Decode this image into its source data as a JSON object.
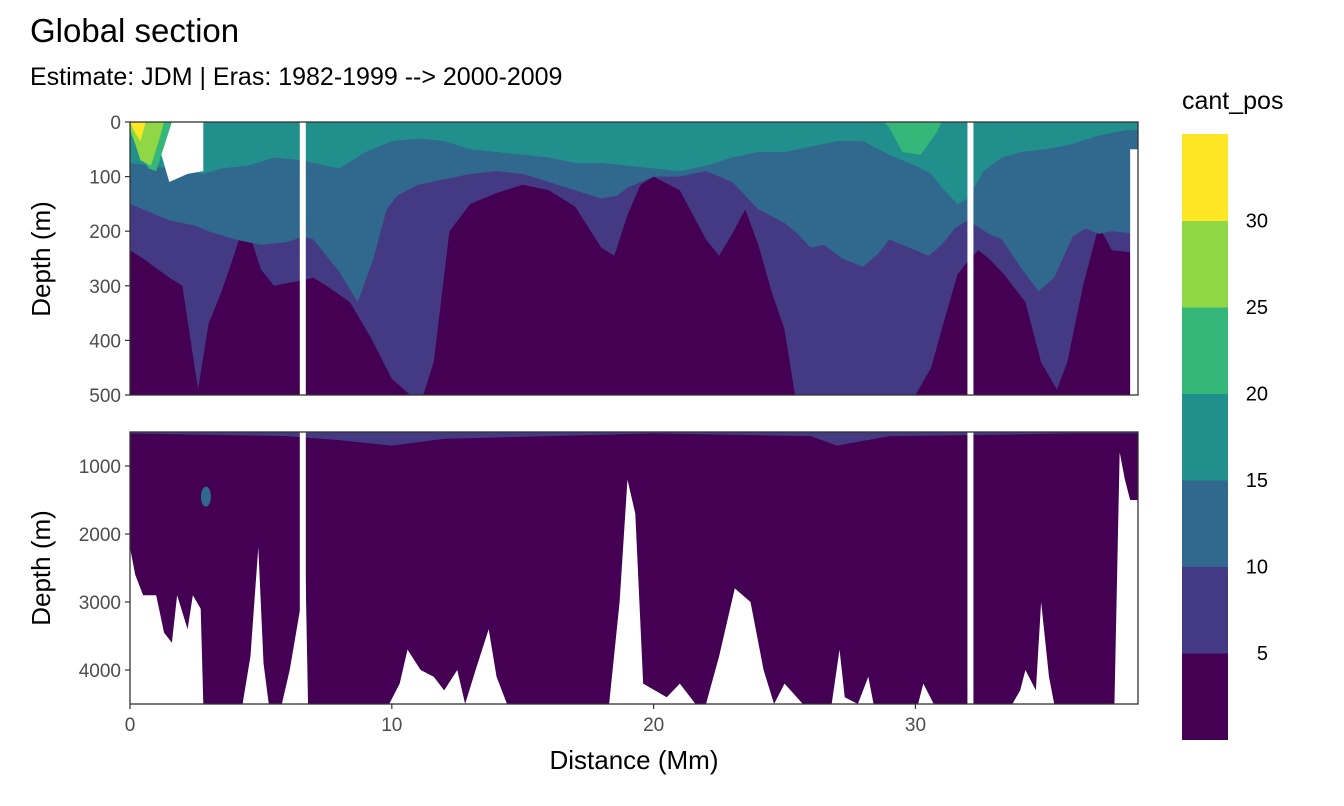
{
  "chart_data": {
    "type": "heatmap",
    "title": "Global section",
    "subtitle": "Estimate: JDM  | Eras: 1982-1999 --> 2000-2009",
    "xlabel": "Distance (Mm)",
    "ylabel": "Depth (m)",
    "xlim": [
      0,
      38.5
    ],
    "x_ticks": [
      "0",
      "10",
      "20",
      "30"
    ],
    "x_tick_values": [
      0,
      10,
      20,
      30
    ],
    "panels": [
      {
        "name": "upper",
        "ylim": [
          0,
          500
        ],
        "y_ticks": [
          "0",
          "100",
          "200",
          "300",
          "400",
          "500"
        ],
        "y_tick_values": [
          0,
          100,
          200,
          300,
          400,
          500
        ]
      },
      {
        "name": "lower",
        "ylim": [
          500,
          4500
        ],
        "y_ticks": [
          "1000",
          "2000",
          "3000",
          "4000"
        ],
        "y_tick_values": [
          1000,
          2000,
          3000,
          4000
        ]
      }
    ],
    "gaps_x": [
      6.6,
      32.1
    ],
    "legend": {
      "title": "cant_pos",
      "breaks": [
        "5",
        "10",
        "15",
        "20",
        "25",
        "30"
      ],
      "bins": [
        {
          "from": 0,
          "to": 5,
          "color": "#440154"
        },
        {
          "from": 5,
          "to": 10,
          "color": "#443A83"
        },
        {
          "from": 10,
          "to": 15,
          "color": "#31688E"
        },
        {
          "from": 15,
          "to": 20,
          "color": "#21908C"
        },
        {
          "from": 20,
          "to": 25,
          "color": "#35B779"
        },
        {
          "from": 25,
          "to": 30,
          "color": "#8FD744"
        },
        {
          "from": 30,
          "to": 35,
          "color": "#FDE725"
        }
      ]
    },
    "profiles": {
      "depth_5_bin": [
        [
          0,
          235
        ],
        [
          0.5,
          250
        ],
        [
          1.5,
          285
        ],
        [
          2,
          300
        ],
        [
          2.6,
          490
        ],
        [
          3,
          370
        ],
        [
          3.5,
          310
        ],
        [
          4,
          240
        ],
        [
          4.4,
          180
        ],
        [
          5,
          270
        ],
        [
          5.5,
          300
        ],
        [
          6,
          295
        ],
        [
          6.6,
          290
        ],
        [
          7,
          285
        ],
        [
          7.5,
          300
        ],
        [
          8.4,
          330
        ],
        [
          9.2,
          395
        ],
        [
          10,
          470
        ],
        [
          10.7,
          500
        ],
        [
          11.2,
          500
        ],
        [
          11.6,
          440
        ],
        [
          12.2,
          200
        ],
        [
          13,
          150
        ],
        [
          14,
          130
        ],
        [
          15,
          115
        ],
        [
          16,
          125
        ],
        [
          17,
          155
        ],
        [
          18,
          230
        ],
        [
          18.5,
          245
        ],
        [
          19,
          170
        ],
        [
          19.5,
          115
        ],
        [
          20,
          100
        ],
        [
          21,
          125
        ],
        [
          22,
          215
        ],
        [
          22.5,
          245
        ],
        [
          23,
          205
        ],
        [
          23.5,
          160
        ],
        [
          24,
          225
        ],
        [
          24.5,
          310
        ],
        [
          25,
          380
        ],
        [
          25.4,
          500
        ],
        [
          26,
          500
        ],
        [
          27,
          500
        ],
        [
          28,
          500
        ],
        [
          29,
          500
        ],
        [
          30,
          500
        ],
        [
          30.6,
          450
        ],
        [
          31,
          380
        ],
        [
          31.6,
          280
        ],
        [
          32,
          255
        ],
        [
          32.4,
          235
        ],
        [
          32.8,
          250
        ],
        [
          33.4,
          280
        ],
        [
          34.2,
          330
        ],
        [
          34.8,
          440
        ],
        [
          35.4,
          490
        ],
        [
          35.8,
          440
        ],
        [
          36.4,
          300
        ],
        [
          37,
          190
        ],
        [
          37.5,
          235
        ],
        [
          38.5,
          240
        ]
      ],
      "depth_10_bin": [
        [
          0,
          150
        ],
        [
          0.5,
          160
        ],
        [
          1.5,
          180
        ],
        [
          2.5,
          190
        ],
        [
          3,
          200
        ],
        [
          4,
          215
        ],
        [
          5,
          225
        ],
        [
          6,
          220
        ],
        [
          6.6,
          210
        ],
        [
          7,
          215
        ],
        [
          8,
          275
        ],
        [
          8.7,
          330
        ],
        [
          9.3,
          250
        ],
        [
          9.8,
          160
        ],
        [
          10.2,
          135
        ],
        [
          11,
          115
        ],
        [
          12,
          105
        ],
        [
          13,
          95
        ],
        [
          14,
          90
        ],
        [
          15,
          95
        ],
        [
          16,
          110
        ],
        [
          17,
          125
        ],
        [
          18,
          140
        ],
        [
          18.6,
          135
        ],
        [
          19,
          120
        ],
        [
          20,
          100
        ],
        [
          21,
          100
        ],
        [
          22,
          90
        ],
        [
          23,
          110
        ],
        [
          24,
          160
        ],
        [
          25,
          185
        ],
        [
          25.5,
          205
        ],
        [
          26,
          230
        ],
        [
          26.5,
          225
        ],
        [
          27.2,
          250
        ],
        [
          28,
          265
        ],
        [
          28.6,
          240
        ],
        [
          29,
          215
        ],
        [
          30,
          235
        ],
        [
          30.5,
          245
        ],
        [
          31,
          225
        ],
        [
          31.5,
          195
        ],
        [
          32,
          180
        ],
        [
          32.8,
          205
        ],
        [
          33.3,
          215
        ],
        [
          34,
          265
        ],
        [
          34.7,
          310
        ],
        [
          35.3,
          285
        ],
        [
          36,
          210
        ],
        [
          36.5,
          195
        ],
        [
          37,
          205
        ],
        [
          37.5,
          200
        ],
        [
          38.5,
          205
        ]
      ],
      "depth_15_bin": [
        [
          0,
          75
        ],
        [
          1.5,
          85
        ],
        [
          2.8,
          95
        ],
        [
          3.5,
          85
        ],
        [
          4.5,
          80
        ],
        [
          5.5,
          65
        ],
        [
          6.6,
          70
        ],
        [
          7,
          75
        ],
        [
          8,
          85
        ],
        [
          9,
          55
        ],
        [
          10,
          35
        ],
        [
          11,
          30
        ],
        [
          12,
          35
        ],
        [
          13,
          50
        ],
        [
          14,
          55
        ],
        [
          15,
          60
        ],
        [
          16,
          65
        ],
        [
          17,
          75
        ],
        [
          18,
          75
        ],
        [
          19,
          80
        ],
        [
          20,
          85
        ],
        [
          21,
          90
        ],
        [
          22,
          80
        ],
        [
          23,
          65
        ],
        [
          24,
          55
        ],
        [
          25,
          55
        ],
        [
          26,
          45
        ],
        [
          27,
          35
        ],
        [
          28,
          35
        ],
        [
          29,
          60
        ],
        [
          30,
          80
        ],
        [
          30.6,
          95
        ],
        [
          31,
          120
        ],
        [
          31.6,
          150
        ],
        [
          32,
          140
        ],
        [
          32.6,
          90
        ],
        [
          33.3,
          65
        ],
        [
          34,
          55
        ],
        [
          35,
          50
        ],
        [
          36,
          40
        ],
        [
          37,
          25
        ],
        [
          38,
          15
        ],
        [
          38.5,
          15
        ]
      ],
      "depth_20_bin": [
        [
          0,
          20
        ],
        [
          0.3,
          50
        ],
        [
          0.7,
          85
        ],
        [
          1,
          90
        ],
        [
          1.3,
          45
        ],
        [
          1.6,
          10
        ],
        [
          1.8,
          0
        ],
        [
          28.8,
          0
        ],
        [
          29,
          10
        ],
        [
          29.5,
          55
        ],
        [
          30.2,
          60
        ],
        [
          30.8,
          20
        ],
        [
          31,
          0
        ],
        [
          38.5,
          0
        ]
      ],
      "depth_25_bin": [
        [
          0,
          10
        ],
        [
          0.4,
          70
        ],
        [
          0.8,
          80
        ],
        [
          1.1,
          35
        ],
        [
          1.3,
          0
        ],
        [
          38.5,
          0
        ]
      ],
      "depth_30_bin": [
        [
          0,
          0
        ],
        [
          0.2,
          20
        ],
        [
          0.4,
          35
        ],
        [
          0.6,
          0
        ],
        [
          38.5,
          0
        ]
      ],
      "bottom_m": [
        [
          0,
          2200
        ],
        [
          0.2,
          2600
        ],
        [
          0.5,
          2900
        ],
        [
          1,
          2900
        ],
        [
          1.3,
          3450
        ],
        [
          1.6,
          3600
        ],
        [
          1.8,
          2900
        ],
        [
          2.2,
          3400
        ],
        [
          2.4,
          2900
        ],
        [
          2.7,
          3100
        ],
        [
          2.8,
          4500
        ],
        [
          4.3,
          4500
        ],
        [
          4.6,
          3800
        ],
        [
          4.9,
          2200
        ],
        [
          5.1,
          3900
        ],
        [
          5.3,
          4500
        ],
        [
          5.8,
          4500
        ],
        [
          6.1,
          4000
        ],
        [
          6.5,
          3100
        ],
        [
          6.6,
          500
        ],
        [
          6.8,
          4500
        ],
        [
          9.9,
          4500
        ],
        [
          10.3,
          4200
        ],
        [
          10.6,
          3700
        ],
        [
          11.1,
          4000
        ],
        [
          11.6,
          4100
        ],
        [
          12,
          4300
        ],
        [
          12.5,
          4000
        ],
        [
          12.8,
          4500
        ],
        [
          13.2,
          4000
        ],
        [
          13.7,
          3400
        ],
        [
          14,
          4100
        ],
        [
          14.4,
          4500
        ],
        [
          18.3,
          4500
        ],
        [
          18.7,
          3000
        ],
        [
          19,
          1200
        ],
        [
          19.3,
          1700
        ],
        [
          19.6,
          4200
        ],
        [
          20.5,
          4400
        ],
        [
          21,
          4200
        ],
        [
          21.6,
          4500
        ],
        [
          22,
          4500
        ],
        [
          22.5,
          3800
        ],
        [
          23.1,
          2800
        ],
        [
          23.7,
          3000
        ],
        [
          24.2,
          4000
        ],
        [
          24.6,
          4500
        ],
        [
          25,
          4200
        ],
        [
          25.7,
          4500
        ],
        [
          26.8,
          4500
        ],
        [
          27.1,
          3700
        ],
        [
          27.3,
          4400
        ],
        [
          27.8,
          4500
        ],
        [
          28.2,
          4100
        ],
        [
          28.4,
          4500
        ],
        [
          30.1,
          4500
        ],
        [
          30.3,
          4200
        ],
        [
          30.7,
          4500
        ],
        [
          33.7,
          4500
        ],
        [
          34,
          4300
        ],
        [
          34.2,
          4000
        ],
        [
          34.6,
          4300
        ],
        [
          34.8,
          3000
        ],
        [
          35.1,
          4100
        ],
        [
          35.3,
          4500
        ],
        [
          37.6,
          4500
        ],
        [
          37.8,
          800
        ],
        [
          38,
          1200
        ],
        [
          38.2,
          1500
        ],
        [
          38.5,
          1500
        ]
      ]
    }
  }
}
